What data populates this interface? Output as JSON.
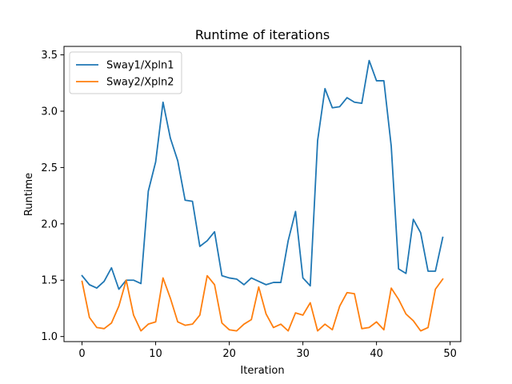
{
  "chart_data": {
    "type": "line",
    "title": "Runtime of iterations",
    "xlabel": "Iteration",
    "ylabel": "Runtime",
    "xlim": [
      -2.45,
      51.45
    ],
    "ylim": [
      0.955,
      3.575
    ],
    "xticks": [
      0,
      10,
      20,
      30,
      40,
      50
    ],
    "yticks": [
      1.0,
      1.5,
      2.0,
      2.5,
      3.0,
      3.5
    ],
    "ytick_labels": [
      "1.0",
      "1.5",
      "2.0",
      "2.5",
      "3.0",
      "3.5"
    ],
    "grid": false,
    "legend_position": "upper-left",
    "x": [
      0,
      1,
      2,
      3,
      4,
      5,
      6,
      7,
      8,
      9,
      10,
      11,
      12,
      13,
      14,
      15,
      16,
      17,
      18,
      19,
      20,
      21,
      22,
      23,
      24,
      25,
      26,
      27,
      28,
      29,
      30,
      31,
      32,
      33,
      34,
      35,
      36,
      37,
      38,
      39,
      40,
      41,
      42,
      43,
      44,
      45,
      46,
      47,
      48,
      49
    ],
    "series": [
      {
        "name": "Sway1/Xpln1",
        "color": "#1f77b4",
        "values": [
          1.54,
          1.46,
          1.43,
          1.49,
          1.61,
          1.42,
          1.5,
          1.5,
          1.47,
          2.29,
          2.55,
          3.08,
          2.76,
          2.56,
          2.21,
          2.2,
          1.8,
          1.85,
          1.93,
          1.54,
          1.52,
          1.51,
          1.46,
          1.52,
          1.49,
          1.46,
          1.48,
          1.48,
          1.85,
          2.11,
          1.52,
          1.45,
          2.74,
          3.2,
          3.03,
          3.04,
          3.12,
          3.08,
          3.07,
          3.45,
          3.27,
          3.27,
          2.69,
          1.6,
          1.56,
          2.04,
          1.92,
          1.58,
          1.58,
          1.88
        ]
      },
      {
        "name": "Sway2/Xpln2",
        "color": "#ff7f0e",
        "values": [
          1.49,
          1.17,
          1.08,
          1.07,
          1.12,
          1.27,
          1.5,
          1.19,
          1.05,
          1.11,
          1.13,
          1.52,
          1.34,
          1.13,
          1.1,
          1.11,
          1.19,
          1.54,
          1.46,
          1.12,
          1.06,
          1.05,
          1.11,
          1.15,
          1.44,
          1.2,
          1.08,
          1.11,
          1.05,
          1.21,
          1.19,
          1.3,
          1.05,
          1.11,
          1.06,
          1.27,
          1.39,
          1.38,
          1.07,
          1.08,
          1.13,
          1.06,
          1.43,
          1.33,
          1.2,
          1.14,
          1.05,
          1.08,
          1.42,
          1.51
        ]
      }
    ]
  }
}
